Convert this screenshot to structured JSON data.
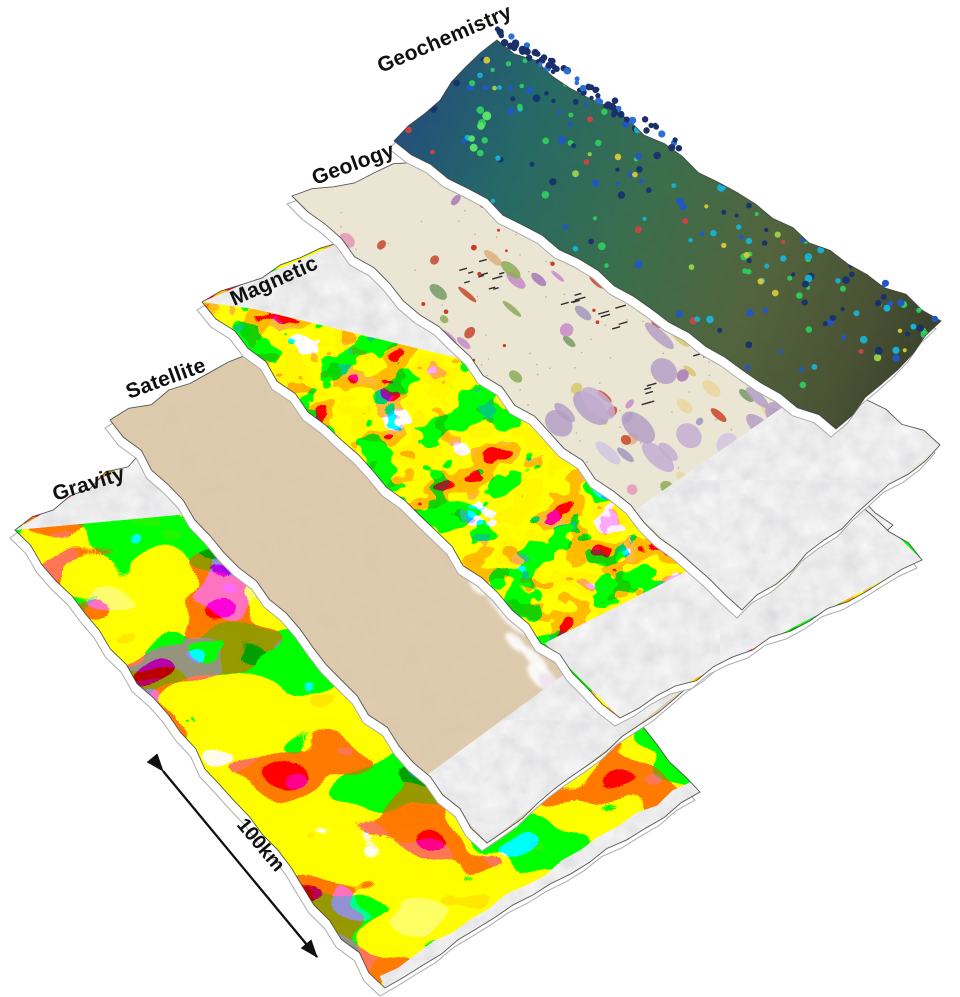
{
  "figure": {
    "background_color": "#ffffff",
    "layers": [
      {
        "id": "geochemistry",
        "label": "Geochemistry",
        "palette": [
          "#0d3c6e",
          "#16b4d8",
          "#2ecc5e",
          "#2c3a1d"
        ]
      },
      {
        "id": "geology",
        "label": "Geology",
        "palette": [
          "#ebe6d4",
          "#c3add1",
          "#c94f35",
          "#d9c873"
        ]
      },
      {
        "id": "magnetic",
        "label": "Magnetic",
        "palette": [
          "#e8281e",
          "#1faf3c",
          "#1837d8",
          "#e012b4"
        ]
      },
      {
        "id": "satellite",
        "label": "Satellite",
        "palette": [
          "#dbc5a2",
          "#fcfcfa"
        ]
      },
      {
        "id": "gravity",
        "label": "Gravity",
        "palette": [
          "#e8281e",
          "#1faf3c",
          "#1837d8",
          "#e012b4"
        ]
      }
    ],
    "scale_bar": {
      "label": "100km",
      "type": "double-headed-arrow"
    }
  }
}
